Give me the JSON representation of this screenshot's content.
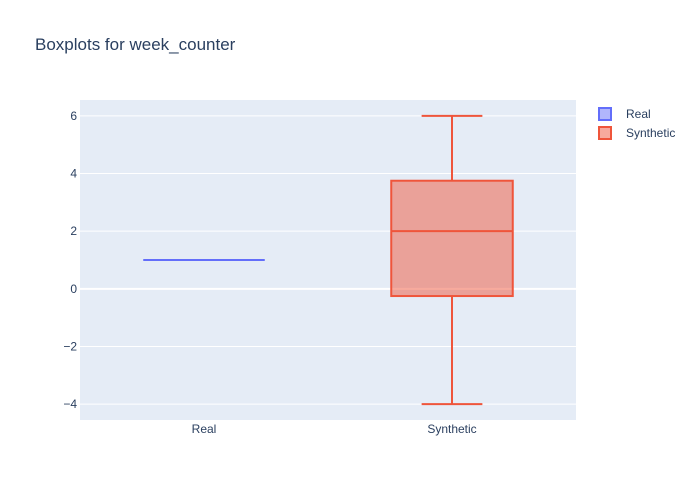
{
  "chart_data": {
    "type": "box",
    "title": "Boxplots for week_counter",
    "xlabel": "",
    "ylabel": "",
    "categories": [
      "Real",
      "Synthetic"
    ],
    "ylim": [
      -4.55,
      6.55
    ],
    "yticks": [
      -4,
      -2,
      0,
      2,
      4,
      6
    ],
    "ytick_labels": [
      "−4",
      "−2",
      "0",
      "2",
      "4",
      "6"
    ],
    "grid": true,
    "legend_position": "top-right",
    "series": [
      {
        "name": "Real",
        "color": "#636efa",
        "fill": "rgba(99,110,250,0.5)",
        "min": 1,
        "q1": 1,
        "median": 1,
        "q3": 1,
        "max": 1
      },
      {
        "name": "Synthetic",
        "color": "#ef553b",
        "fill": "rgba(239,85,59,0.5)",
        "min": -4,
        "q1": -0.25,
        "median": 2,
        "q3": 3.75,
        "max": 6
      }
    ],
    "background_color": "#e5ecf6",
    "grid_color": "#ffffff"
  }
}
